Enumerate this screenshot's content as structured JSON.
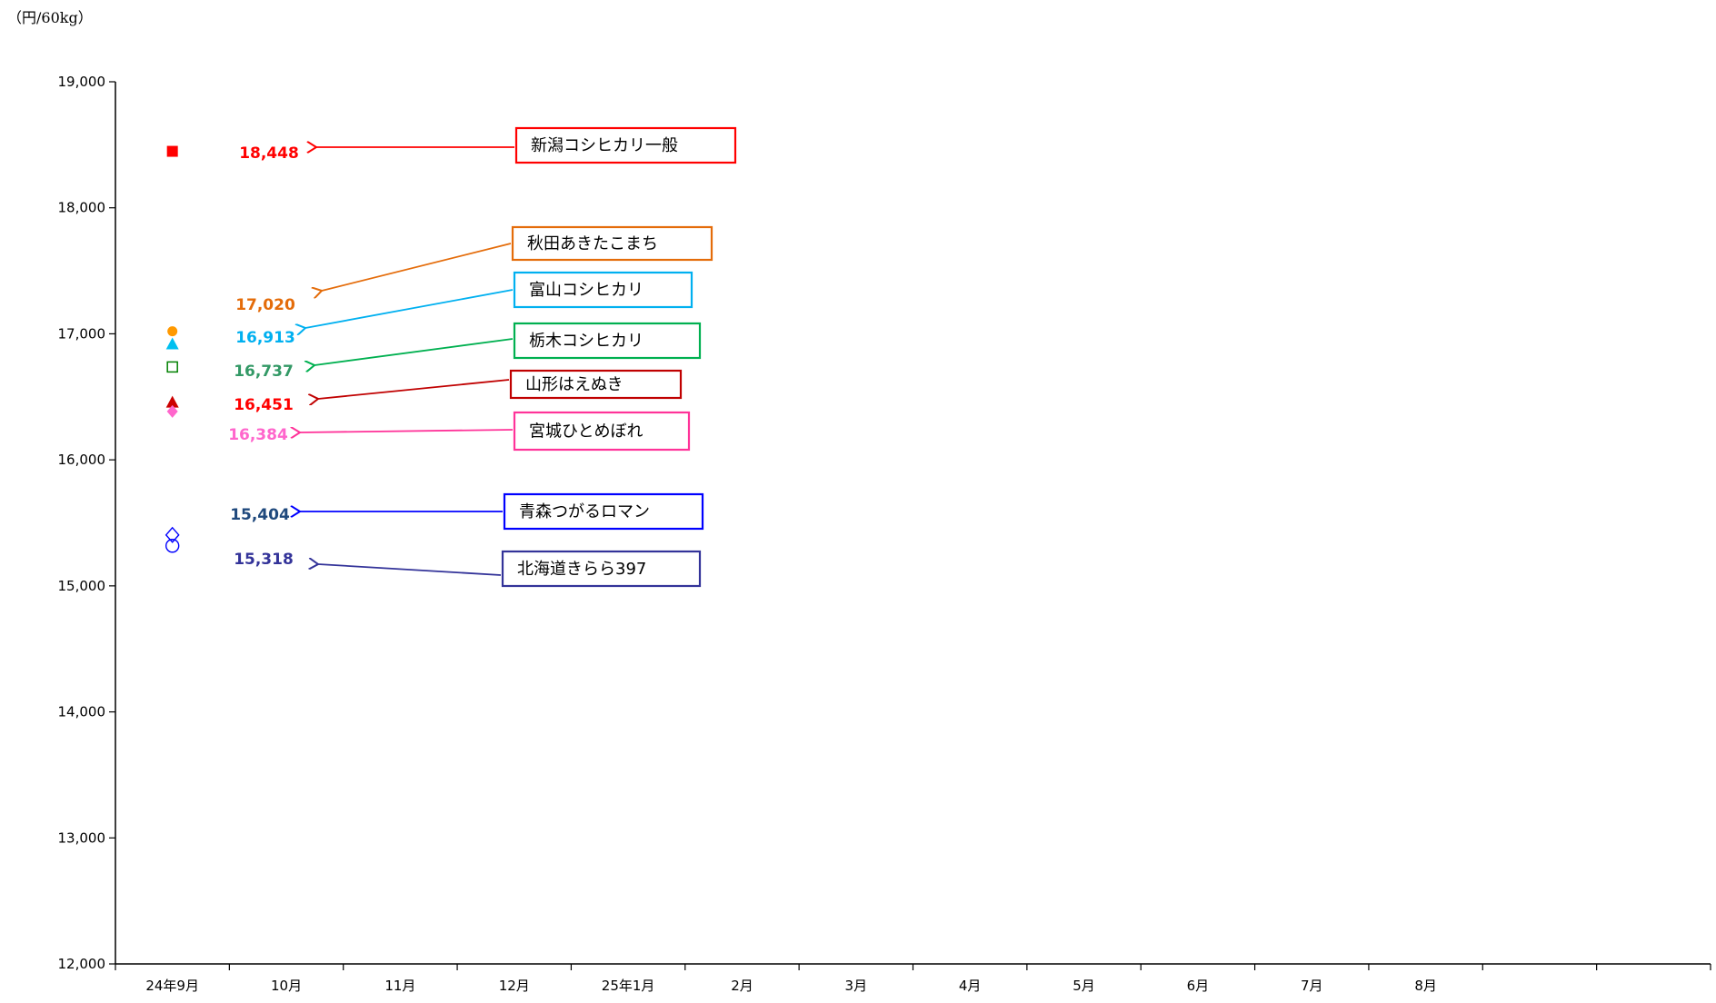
{
  "chart_data": {
    "type": "scatter",
    "unit": "（円/60kg）",
    "categories": [
      "24年9月",
      "10月",
      "11月",
      "12月",
      "25年1月",
      "2月",
      "3月",
      "4月",
      "5月",
      "6月",
      "7月",
      "8月",
      "",
      ""
    ],
    "ylim": [
      12000,
      19000
    ],
    "yticks": [
      "12,000",
      "13,000",
      "14,000",
      "15,000",
      "16,000",
      "17,000",
      "18,000",
      "19,000"
    ],
    "grid": false,
    "series": [
      {
        "name": "新潟コシヒカリ一般",
        "x": "24年9月",
        "value": 18448,
        "value_label": "18,448",
        "marker": "square-filled",
        "color": "#ff0000",
        "label_color": "#ff0000",
        "box_color": "#ff0000"
      },
      {
        "name": "秋田あきたこまち",
        "x": "24年9月",
        "value": 17020,
        "value_label": "17,020",
        "marker": "circle-filled",
        "color": "#ff9900",
        "label_color": "#e46c0a",
        "box_color": "#e46c0a"
      },
      {
        "name": "富山コシヒカリ",
        "x": "24年9月",
        "value": 16913,
        "value_label": "16,913",
        "marker": "triangle-filled",
        "color": "#00c0f0",
        "label_color": "#00b0f0",
        "box_color": "#00b0f0"
      },
      {
        "name": "栃木コシヒカリ",
        "x": "24年9月",
        "value": 16737,
        "value_label": "16,737",
        "marker": "square-open",
        "color": "#008000",
        "label_color": "#339966",
        "box_color": "#00b050"
      },
      {
        "name": "山形はえぬき",
        "x": "24年9月",
        "value": 16451,
        "value_label": "16,451",
        "marker": "triangle-filled",
        "color": "#cc0000",
        "label_color": "#ff0000",
        "box_color": "#c00000"
      },
      {
        "name": "宮城ひとめぼれ",
        "x": "24年9月",
        "value": 16384,
        "value_label": "16,384",
        "marker": "diamond-filled",
        "color": "#ff66cc",
        "label_color": "#ff66cc",
        "box_color": "#ff3399"
      },
      {
        "name": "青森つがるロマン",
        "x": "24年9月",
        "value": 15404,
        "value_label": "15,404",
        "marker": "diamond-open",
        "color": "#0000ff",
        "label_color": "#1f497d",
        "box_color": "#0000ff"
      },
      {
        "name": "北海道きらら397",
        "x": "24年9月",
        "value": 15318,
        "value_label": "15,318",
        "marker": "circle-open",
        "color": "#0000ff",
        "label_color": "#333399",
        "box_color": "#333399"
      }
    ]
  }
}
